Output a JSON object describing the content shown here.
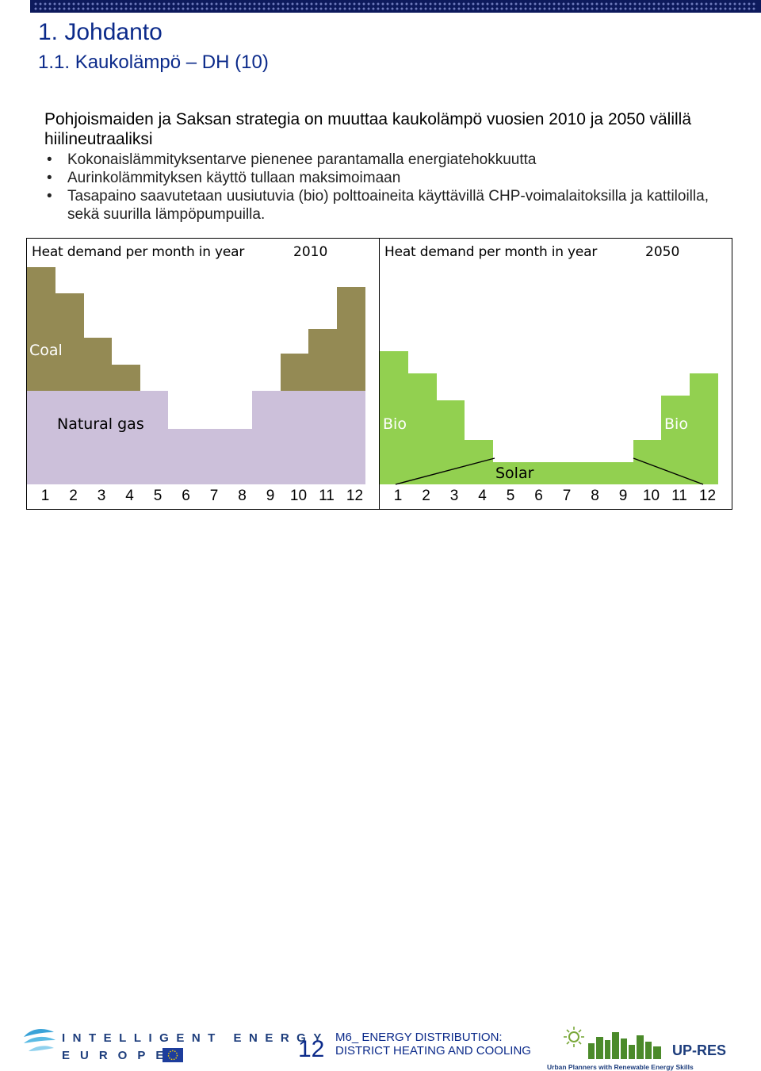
{
  "slide": {
    "title": "1.  Johdanto",
    "subtitle": "1.1. Kaukolämpö – DH (10)",
    "intro": "Pohjoismaiden ja Saksan strategia on muuttaa kaukolämpö vuosien 2010 ja 2050 välillä hiilineutraaliksi",
    "bullets": [
      "Kokonaislämmityksentarve pienenee parantamalla energiatehokkuutta",
      "Aurinkolämmityksen käyttö tullaan maksimoimaan",
      "Tasapaino saavutetaan uusiutuvia (bio) polttoaineita käyttävillä CHP-voimalaitoksilla ja kattiloilla, sekä suurilla lämpöpumpuilla."
    ]
  },
  "colors": {
    "header_bar": "#0d1a5c",
    "title": "#0b2a8a",
    "coal": "#948a54",
    "natural_gas": "#ccc0da",
    "bio": "#92d050"
  },
  "panels": [
    {
      "title": "Heat demand per month in year",
      "year": "2010",
      "months": [
        "1",
        "2",
        "3",
        "4",
        "5",
        "6",
        "7",
        "8",
        "9",
        "10",
        "11",
        "12"
      ],
      "labels": {
        "coal": "Coal",
        "gas": "Natural gas"
      },
      "total": [
        9.8,
        8.6,
        6.6,
        5.4,
        4.2,
        2.5,
        2.5,
        2.5,
        4.2,
        5.9,
        7.0,
        8.9
      ],
      "gas": [
        4.2,
        4.2,
        4.2,
        4.2,
        4.2,
        2.5,
        2.5,
        2.5,
        4.2,
        4.2,
        4.2,
        4.2
      ]
    },
    {
      "title": "Heat demand per month in year",
      "year": "2050",
      "months": [
        "1",
        "2",
        "3",
        "4",
        "5",
        "6",
        "7",
        "8",
        "9",
        "10",
        "11",
        "12"
      ],
      "labels": {
        "bio_left": "Bio",
        "bio_right": "Bio",
        "solar": "Solar"
      },
      "bio": [
        6.0,
        5.0,
        3.8,
        2.0,
        1.0,
        1.0,
        1.0,
        1.0,
        1.0,
        2.0,
        4.0,
        5.0
      ]
    }
  ],
  "footer": {
    "iee_line1": "INTELLIGENT ENERGY",
    "iee_line2": "EUROPE",
    "page_number": "12",
    "module_line1": "M6_ ENERGY DISTRIBUTION:",
    "module_line2": "DISTRICT HEATING AND COOLING",
    "upres_name": "UP-RES",
    "upres_tagline": "Urban Planners with Renewable Energy Skills"
  }
}
